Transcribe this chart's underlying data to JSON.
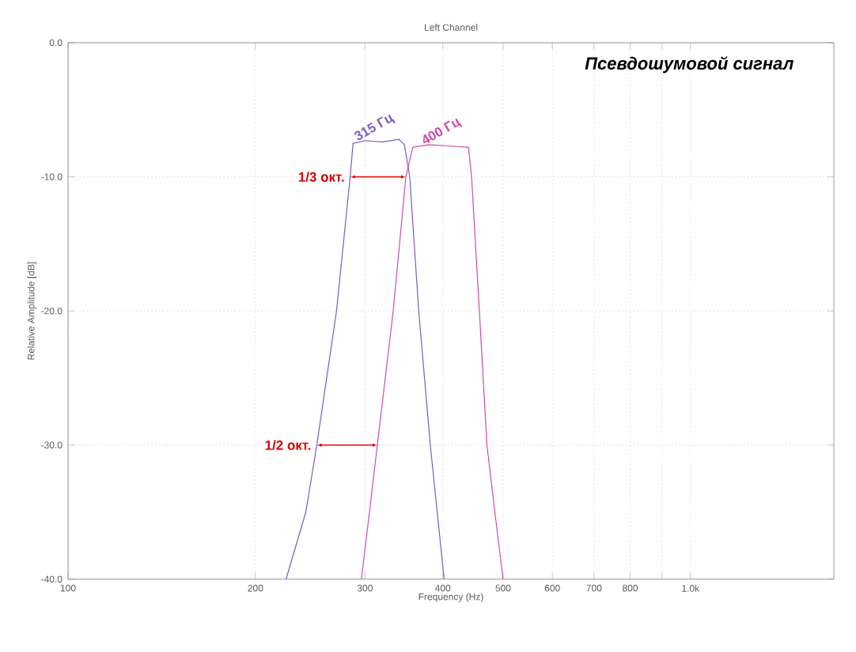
{
  "chart_data": {
    "type": "line",
    "title": "Left Channel",
    "subtitle": "Псевдошумовой сигнал",
    "xlabel": "Frequency (Hz)",
    "ylabel": "Relative Amplitude [dB]",
    "log": "x",
    "grid": true,
    "legend": false,
    "marker": "none",
    "line_style": "solid",
    "xlim": [
      100,
      1700
    ],
    "ylim": [
      -40,
      0
    ],
    "xticks": [
      100,
      200,
      300,
      400,
      500,
      600,
      700,
      800,
      {
        "value": 900,
        "label": null
      },
      {
        "value": 1000,
        "label": "1.0k"
      }
    ],
    "yticks": [
      {
        "value": -40,
        "label": "-40.0"
      },
      {
        "value": -30,
        "label": "-30.0"
      },
      {
        "value": -20,
        "label": "-20.0"
      },
      {
        "value": -10,
        "label": "-10.0"
      },
      {
        "value": 0,
        "label": "0.0"
      }
    ],
    "series": [
      {
        "name": "315 Гц",
        "color": "#7a5cc0",
        "x": [
          224,
          241,
          251,
          270,
          284,
          287,
          300,
          320,
          340,
          347,
          354,
          366,
          382,
          402
        ],
        "values": [
          -40,
          -35,
          -30,
          -20,
          -10,
          -7.5,
          -7.3,
          -7.4,
          -7.2,
          -7.6,
          -10,
          -20,
          -30,
          -40
        ]
      },
      {
        "name": "400 Гц",
        "color": "#d04aa8",
        "x": [
          296,
          305,
          314,
          333,
          349,
          358,
          380,
          410,
          440,
          445,
          458,
          471,
          485,
          500
        ],
        "values": [
          -40,
          -35,
          -30,
          -20,
          -10,
          -7.8,
          -7.6,
          -7.7,
          -7.8,
          -10,
          -20,
          -30,
          -35,
          -40
        ]
      }
    ],
    "annotations": [
      {
        "text": "1/3 окт.",
        "x": 284,
        "y": -10
      },
      {
        "text": "1/2 окт.",
        "x": 251,
        "y": -30
      }
    ]
  }
}
